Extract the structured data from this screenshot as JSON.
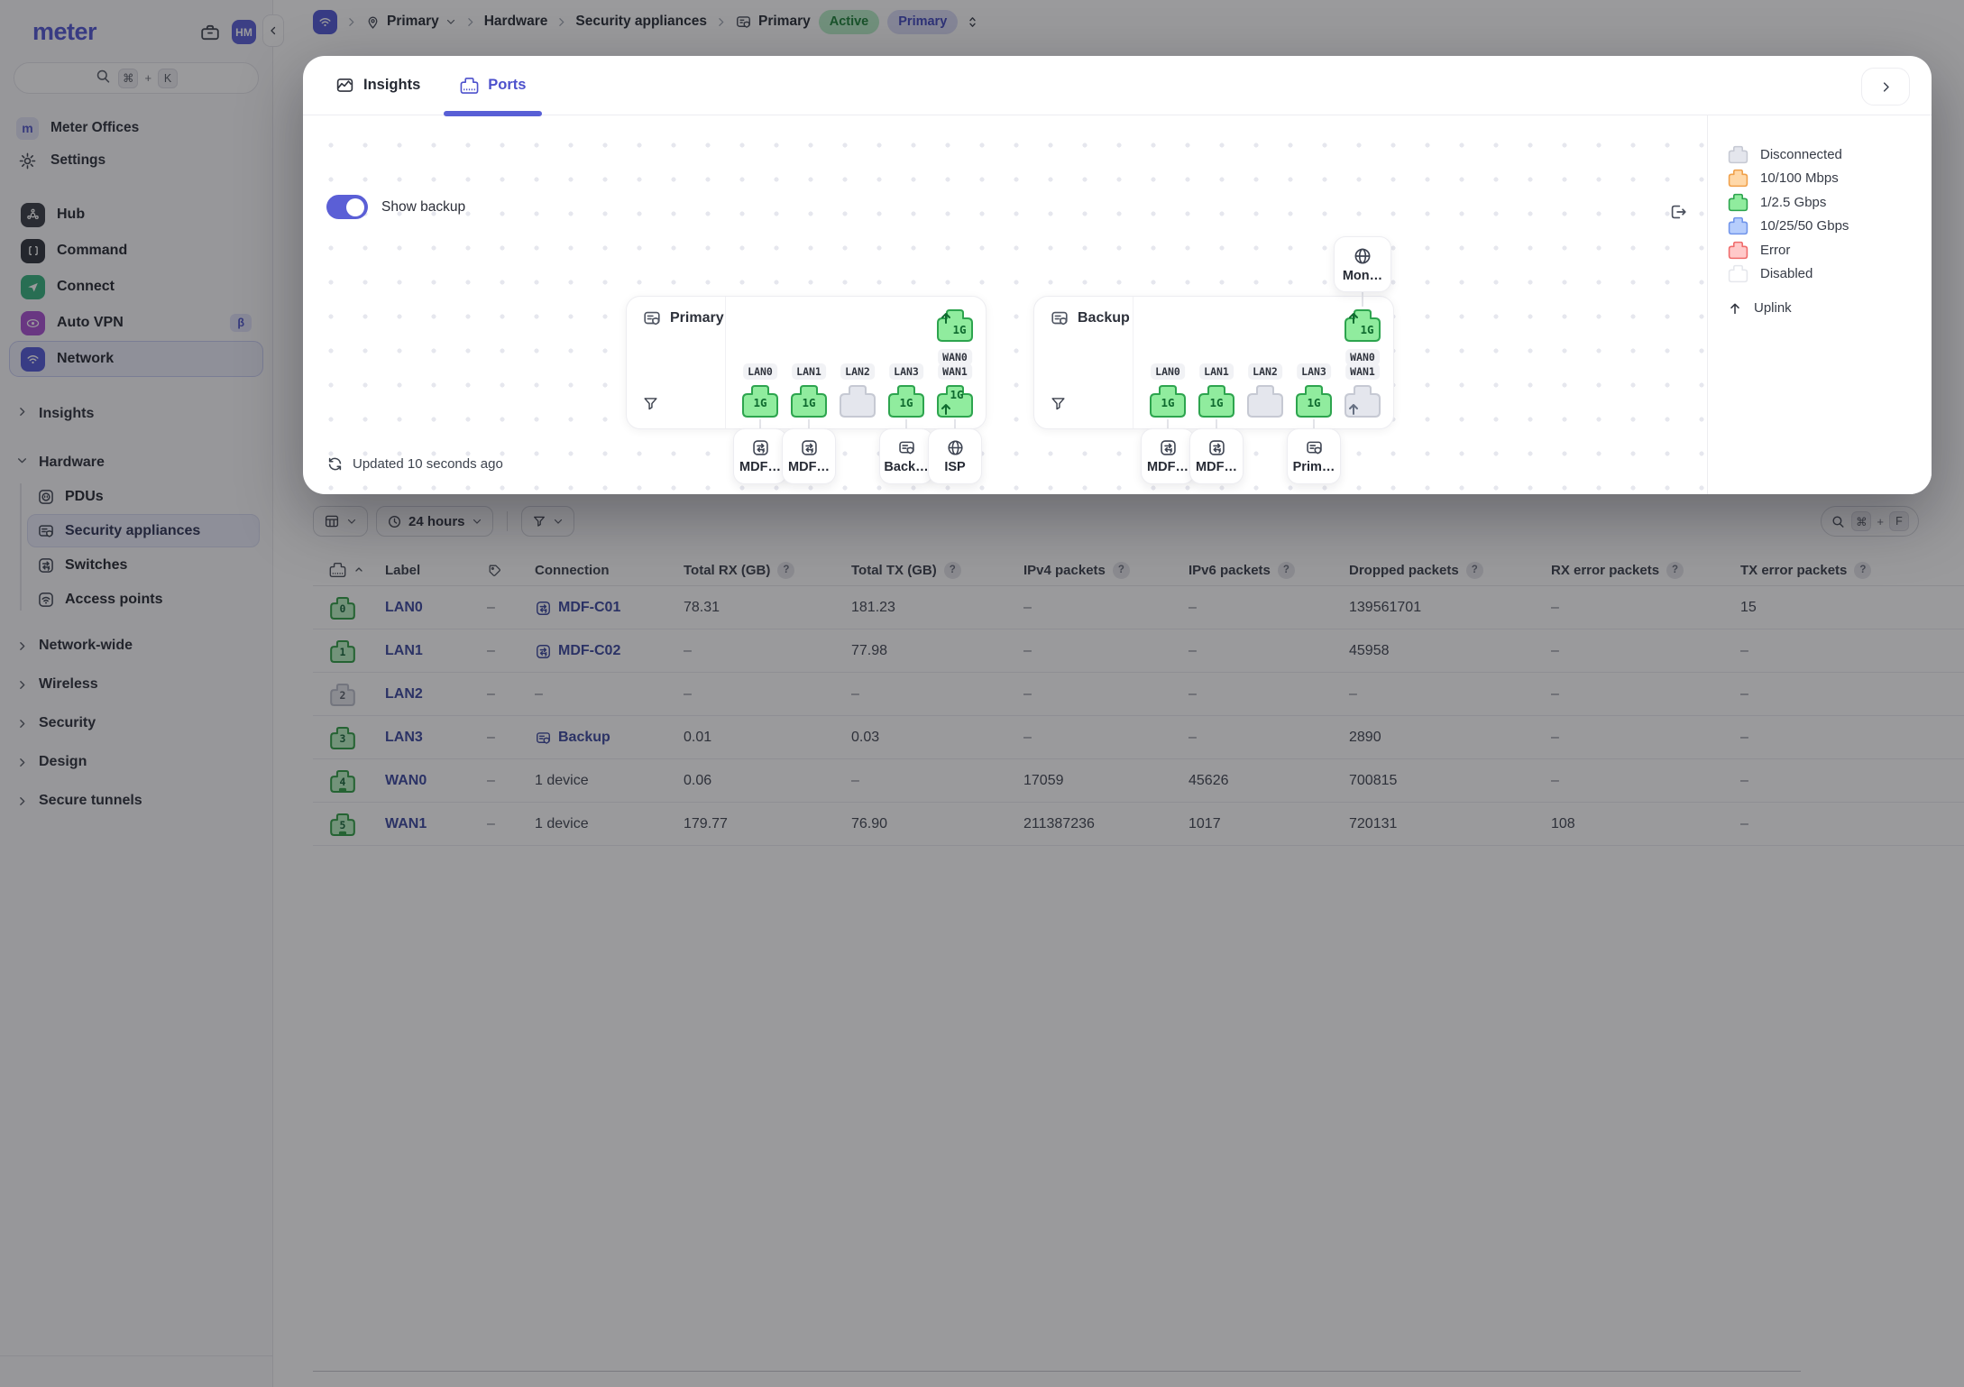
{
  "sidebar": {
    "logo": "meter",
    "avatar": "HM",
    "search_keys": {
      "mod": "⌘",
      "plus": "+",
      "key": "K"
    },
    "org": {
      "initial": "m",
      "label": "Meter Offices"
    },
    "settings_label": "Settings",
    "apps": [
      {
        "label": "Hub",
        "icon": "hub-icon"
      },
      {
        "label": "Command",
        "icon": "command-icon"
      },
      {
        "label": "Connect",
        "icon": "connect-icon"
      },
      {
        "label": "Auto VPN",
        "icon": "autovpn-icon",
        "badge": "β"
      },
      {
        "label": "Network",
        "icon": "network-icon",
        "selected": true
      }
    ],
    "insights_label": "Insights",
    "hardware": {
      "label": "Hardware",
      "items": [
        {
          "label": "PDUs",
          "icon": "pdu-icon"
        },
        {
          "label": "Security appliances",
          "icon": "appliance-icon",
          "selected": true
        },
        {
          "label": "Switches",
          "icon": "switch-icon"
        },
        {
          "label": "Access points",
          "icon": "ap-icon"
        }
      ]
    },
    "groups": [
      "Network-wide",
      "Wireless",
      "Security",
      "Design",
      "Secure tunnels"
    ]
  },
  "breadcrumb": {
    "site": "Primary",
    "level1": "Hardware",
    "level2": "Security appliances",
    "device": "Primary",
    "status_badge": "Active",
    "role_badge": "Primary"
  },
  "panel": {
    "tabs": [
      {
        "label": "Insights",
        "icon": "insights-icon"
      },
      {
        "label": "Ports",
        "icon": "ports-icon",
        "active": true
      }
    ],
    "show_backup_label": "Show backup",
    "updated_text": "Updated 10 seconds ago",
    "legend": {
      "items": [
        {
          "label": "Disconnected",
          "key": "disconnected"
        },
        {
          "label": "10/100 Mbps",
          "key": "mbps"
        },
        {
          "label": "1/2.5 Gbps",
          "key": "gbps1"
        },
        {
          "label": "10/25/50 Gbps",
          "key": "gbps10"
        },
        {
          "label": "Error",
          "key": "error"
        },
        {
          "label": "Disabled",
          "key": "disabled"
        }
      ],
      "uplink_label": "Uplink"
    },
    "devices": [
      {
        "name": "Primary",
        "pos": "primary",
        "wan0": {
          "label": "WAN0",
          "speed": "1G",
          "status": "connected",
          "uplink": "top"
        },
        "ports": [
          {
            "label": "LAN0",
            "speed": "1G",
            "status": "connected"
          },
          {
            "label": "LAN1",
            "speed": "1G",
            "status": "connected"
          },
          {
            "label": "LAN2",
            "status": "disconnected"
          },
          {
            "label": "LAN3",
            "speed": "1G",
            "status": "connected"
          },
          {
            "label": "WAN1",
            "speed": "1G",
            "status": "connected",
            "uplink": "bottom"
          }
        ],
        "connected": [
          {
            "name": "MDF…",
            "icon": "switch-icon",
            "slot": 0
          },
          {
            "name": "MDF…",
            "icon": "switch-icon",
            "slot": 1
          },
          {
            "name": "Back…",
            "icon": "appliance-icon",
            "slot": 3
          },
          {
            "name": "ISP",
            "icon": "globe-icon",
            "slot": 4
          }
        ]
      },
      {
        "name": "Backup",
        "pos": "backup",
        "wan0": {
          "label": "WAN0",
          "speed": "1G",
          "status": "connected",
          "uplink": "top"
        },
        "external": {
          "name": "Mon…",
          "icon": "globe-icon"
        },
        "ports": [
          {
            "label": "LAN0",
            "speed": "1G",
            "status": "connected"
          },
          {
            "label": "LAN1",
            "speed": "1G",
            "status": "connected"
          },
          {
            "label": "LAN2",
            "status": "disconnected"
          },
          {
            "label": "LAN3",
            "speed": "1G",
            "status": "connected"
          },
          {
            "label": "WAN1",
            "status": "disconnected",
            "uplink": "bottom"
          }
        ],
        "connected": [
          {
            "name": "MDF…",
            "icon": "switch-icon",
            "slot": 0
          },
          {
            "name": "MDF…",
            "icon": "switch-icon",
            "slot": 1
          },
          {
            "name": "Prim…",
            "icon": "appliance-icon",
            "slot": 3
          }
        ]
      }
    ]
  },
  "table": {
    "toolbar": {
      "time_range": "24 hours",
      "search_keys": {
        "mod": "⌘",
        "plus": "+",
        "key": "F"
      }
    },
    "columns": [
      {
        "label": "Label"
      },
      {
        "label": "Connection"
      },
      {
        "label": "Total RX (GB)",
        "help": "?"
      },
      {
        "label": "Total TX (GB)",
        "help": "?"
      },
      {
        "label": "IPv4 packets",
        "help": "?"
      },
      {
        "label": "IPv6 packets",
        "help": "?"
      },
      {
        "label": "Dropped packets",
        "help": "?"
      },
      {
        "label": "RX error packets",
        "help": "?"
      },
      {
        "label": "TX error packets",
        "help": "?"
      }
    ],
    "rows": [
      {
        "port": "0",
        "status": "connected",
        "label": "LAN0",
        "tag": "–",
        "connection": {
          "text": "MDF-C01",
          "icon": "switch-icon",
          "link": true
        },
        "cells": [
          "78.31",
          "181.23",
          "–",
          "–",
          "139561701",
          "–",
          "15"
        ]
      },
      {
        "port": "1",
        "status": "connected",
        "label": "LAN1",
        "tag": "–",
        "connection": {
          "text": "MDF-C02",
          "icon": "switch-icon",
          "link": true
        },
        "cells": [
          "–",
          "77.98",
          "–",
          "–",
          "45958",
          "–",
          "–"
        ]
      },
      {
        "port": "2",
        "status": "disconnected",
        "label": "LAN2",
        "tag": "–",
        "connection": {
          "text": "–"
        },
        "cells": [
          "–",
          "–",
          "–",
          "–",
          "–",
          "–",
          "–"
        ]
      },
      {
        "port": "3",
        "status": "connected",
        "label": "LAN3",
        "tag": "–",
        "connection": {
          "text": "Backup",
          "icon": "appliance-icon",
          "link": true
        },
        "cells": [
          "0.01",
          "0.03",
          "–",
          "–",
          "2890",
          "–",
          "–"
        ]
      },
      {
        "port": "4",
        "status": "connected",
        "uplink": true,
        "label": "WAN0",
        "tag": "–",
        "connection": {
          "text": "1 device"
        },
        "cells": [
          "0.06",
          "–",
          "17059",
          "45626",
          "700815",
          "–",
          "–"
        ]
      },
      {
        "port": "5",
        "status": "connected",
        "uplink": true,
        "label": "WAN1",
        "tag": "–",
        "connection": {
          "text": "1 device"
        },
        "cells": [
          "179.77",
          "76.90",
          "211387236",
          "1017",
          "720131",
          "108",
          "–"
        ]
      }
    ]
  },
  "colors": {
    "accent": "#5156d3",
    "link": "#3a479e",
    "port": {
      "connected": {
        "fill": "#90ec9e",
        "stroke": "#2da44e",
        "text": "#0f6b2f"
      },
      "disconnected": {
        "fill": "#e4e6ed",
        "stroke": "#c6c9d3",
        "text": "#667082"
      }
    },
    "badge_port": {
      "connected": {
        "fill": "#b9f2c2",
        "stroke": "#2f9e44",
        "text": "#17663a"
      },
      "disconnected": {
        "fill": "#e4e6ec",
        "stroke": "#b9bdc9",
        "text": "#5a606c"
      }
    },
    "legend": {
      "disconnected": {
        "fill": "#e4e6ed",
        "stroke": "#c6c9d3"
      },
      "mbps": {
        "fill": "#ffd8a8",
        "stroke": "#f0a04a"
      },
      "gbps1": {
        "fill": "#90ec9e",
        "stroke": "#2da44e"
      },
      "gbps10": {
        "fill": "#b6cdfc",
        "stroke": "#7195ea"
      },
      "error": {
        "fill": "#ffc9c9",
        "stroke": "#ef6b6b"
      },
      "disabled": {
        "fill": "#ffffff",
        "stroke": "#e5e7ec"
      }
    }
  }
}
